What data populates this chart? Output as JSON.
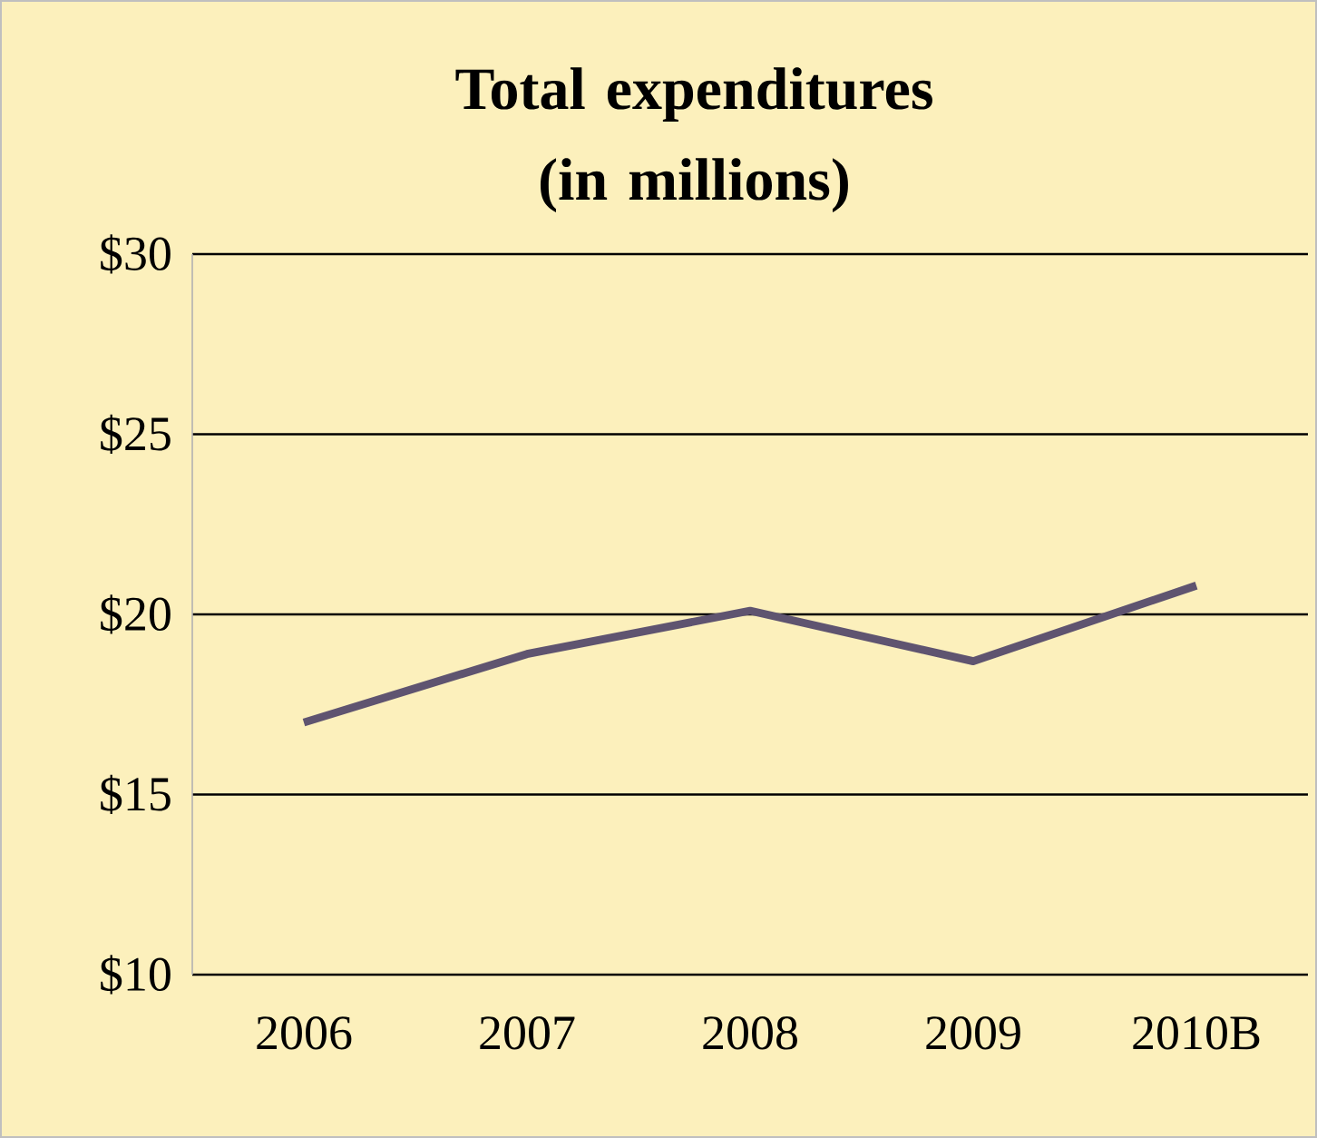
{
  "chart_data": {
    "type": "line",
    "title": "Total expenditures (in millions)",
    "categories": [
      "2006",
      "2007",
      "2008",
      "2009",
      "2010B"
    ],
    "values": [
      17.0,
      18.9,
      20.1,
      18.7,
      20.8
    ],
    "color": "#5f5470",
    "ylim": [
      10,
      30
    ],
    "yticks": [
      {
        "value": 10,
        "label": "$10"
      },
      {
        "value": 15,
        "label": "$15"
      },
      {
        "value": 20,
        "label": "$20"
      },
      {
        "value": 25,
        "label": "$25"
      },
      {
        "value": 30,
        "label": "$30"
      }
    ],
    "grid": "y",
    "marker": "none",
    "line_style": "solid"
  }
}
